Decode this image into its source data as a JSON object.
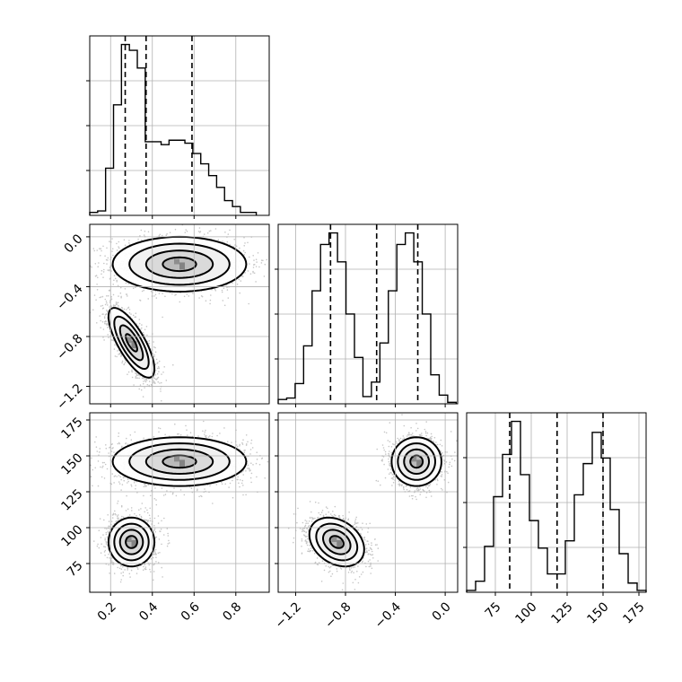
{
  "chart_data": {
    "type": "corner",
    "grid": true,
    "parameters": [
      {
        "range": [
          0.1,
          0.96
        ],
        "ticks": [
          0.2,
          0.4,
          0.6,
          0.8
        ],
        "tick_labels": [
          "0.2",
          "0.4",
          "0.6",
          "0.8"
        ],
        "quantiles": [
          0.27,
          0.37,
          0.59
        ]
      },
      {
        "range": [
          -1.34,
          0.1
        ],
        "ticks": [
          -1.2,
          -0.8,
          -0.4,
          0.0
        ],
        "tick_labels": [
          "−1.2",
          "−0.8",
          "−0.4",
          "0.0"
        ],
        "quantiles": [
          -0.92,
          -0.55,
          -0.22
        ]
      },
      {
        "range": [
          55,
          180
        ],
        "ticks": [
          75,
          100,
          125,
          150,
          175
        ],
        "tick_labels": [
          "75",
          "100",
          "125",
          "150",
          "175"
        ],
        "quantiles": [
          85,
          118,
          150
        ]
      }
    ],
    "histograms": [
      {
        "param": 0,
        "bins": [
          0.1,
          0.138,
          0.176,
          0.214,
          0.252,
          0.29,
          0.328,
          0.366,
          0.404,
          0.442,
          0.48,
          0.518,
          0.556,
          0.594,
          0.632,
          0.67,
          0.708,
          0.746,
          0.784,
          0.822,
          0.86,
          0.898
        ],
        "counts": [
          2,
          3,
          32,
          75,
          116,
          112,
          100,
          50,
          50,
          48,
          51,
          51,
          49,
          42,
          35,
          27,
          19,
          10,
          6,
          2,
          2
        ]
      },
      {
        "param": 1,
        "bins": [
          -1.34,
          -1.272,
          -1.204,
          -1.136,
          -1.068,
          -1.0,
          -0.932,
          -0.864,
          -0.796,
          -0.728,
          -0.66,
          -0.592,
          -0.524,
          -0.456,
          -0.388,
          -0.32,
          -0.252,
          -0.184,
          -0.116,
          -0.048,
          0.02,
          0.088
        ],
        "counts": [
          3,
          4,
          14,
          40,
          78,
          110,
          118,
          98,
          62,
          32,
          5,
          15,
          42,
          78,
          110,
          118,
          98,
          62,
          20,
          6,
          1
        ]
      },
      {
        "param": 2,
        "bins": [
          55,
          61.25,
          67.5,
          73.75,
          80,
          86.25,
          92.5,
          98.75,
          105,
          111.25,
          117.5,
          123.75,
          130,
          136.25,
          142.5,
          148.75,
          155,
          161.25,
          167.5,
          173.75,
          180
        ],
        "counts": [
          1,
          6,
          25,
          52,
          75,
          93,
          64,
          39,
          24,
          10,
          10,
          28,
          53,
          70,
          87,
          73,
          45,
          21,
          5,
          1
        ]
      }
    ],
    "scatter_2d": [
      {
        "x_param": 0,
        "y_param": 1,
        "clusters": [
          {
            "name": "",
            "mean": [
              0.53,
              -0.22
            ],
            "sd": [
              0.16,
              0.11
            ],
            "rho": 0.0,
            "n": 3500
          },
          {
            "name": "",
            "mean": [
              0.3,
              -0.85
            ],
            "sd": [
              0.055,
              0.14
            ],
            "rho": -0.75,
            "n": 3200
          }
        ]
      },
      {
        "x_param": 0,
        "y_param": 2,
        "clusters": [
          {
            "name": "",
            "mean": [
              0.53,
              146
            ],
            "sd": [
              0.16,
              8.5
            ],
            "rho": 0.0,
            "n": 3500
          },
          {
            "name": "",
            "mean": [
              0.3,
              90
            ],
            "sd": [
              0.055,
              8.5
            ],
            "rho": 0.0,
            "n": 3200
          }
        ]
      },
      {
        "x_param": 1,
        "y_param": 2,
        "clusters": [
          {
            "name": "",
            "mean": [
              -0.23,
              146
            ],
            "sd": [
              0.1,
              8.5
            ],
            "rho": 0.0,
            "n": 3500
          },
          {
            "name": "",
            "mean": [
              -0.87,
              90
            ],
            "sd": [
              0.11,
              8.5
            ],
            "rho": -0.3,
            "n": 3200
          }
        ]
      }
    ],
    "contour_levels_sigma": [
      0.5,
      1.0,
      1.5,
      2.0
    ],
    "colors": {
      "line": "#000000",
      "scatter": "#808080",
      "grid": "#b0b0b0"
    }
  }
}
